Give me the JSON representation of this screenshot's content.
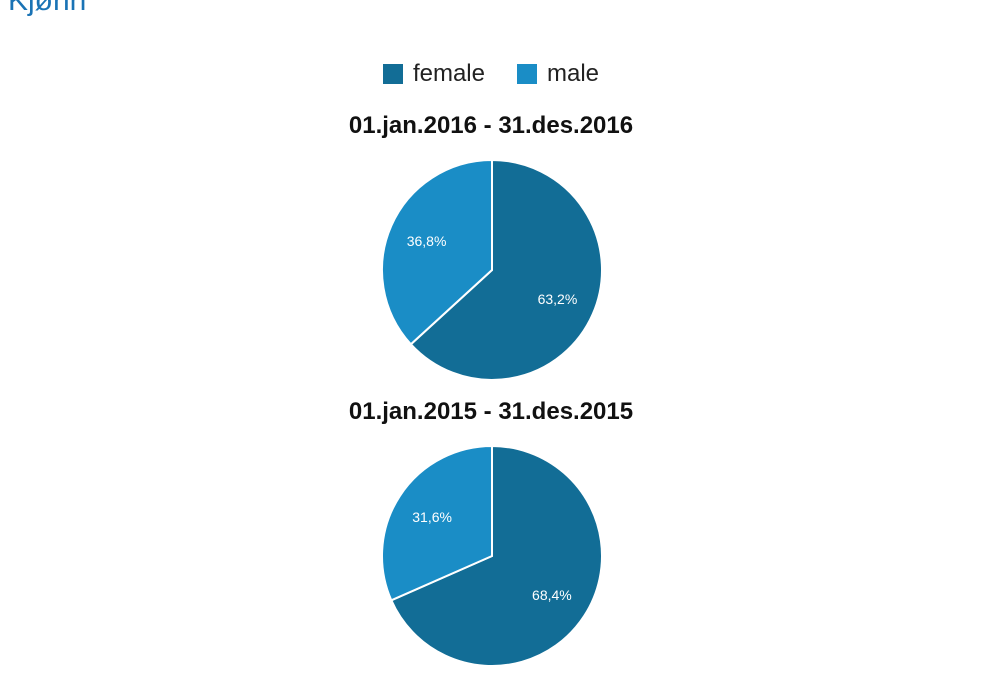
{
  "header": {
    "title": "Kjønn"
  },
  "legend": {
    "items": [
      {
        "label": "female",
        "color": "#126d96"
      },
      {
        "label": "male",
        "color": "#1a8dc6"
      }
    ]
  },
  "chart_data": [
    {
      "type": "pie",
      "title": "01.jan.2016 - 31.des.2016",
      "categories": [
        "female",
        "male"
      ],
      "values": [
        63.2,
        36.8
      ],
      "value_labels": [
        "63,2%",
        "36,8%"
      ],
      "colors": [
        "#126d96",
        "#1a8dc6"
      ]
    },
    {
      "type": "pie",
      "title": "01.jan.2015 - 31.des.2015",
      "categories": [
        "female",
        "male"
      ],
      "values": [
        68.4,
        31.6
      ],
      "value_labels": [
        "68,4%",
        "31,6%"
      ],
      "colors": [
        "#126d96",
        "#1a8dc6"
      ]
    }
  ]
}
